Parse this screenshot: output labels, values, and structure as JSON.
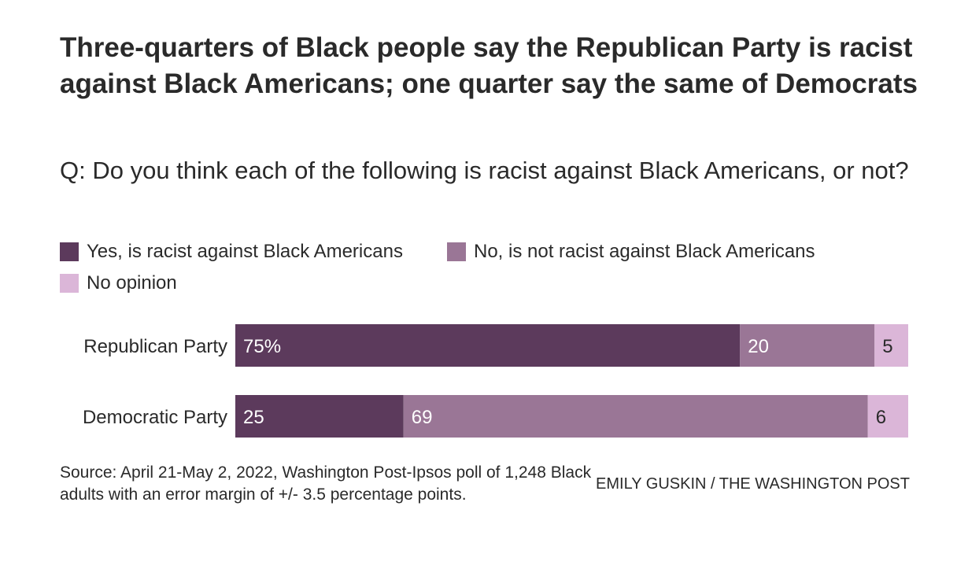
{
  "header": {
    "title": "Three-quarters of Black people say the Republican Party is racist against Black Americans; one quarter say the same of Democrats",
    "subtitle": "Q: Do you think each of the following is racist against Black Americans, or not?"
  },
  "footer": {
    "source": "Source: April 21-May 2, 2022, Washington Post-Ipsos poll of 1,248 Black adults with an error margin of +/- 3.5 percentage points.",
    "credit": "EMILY GUSKIN / THE WASHINGTON POST"
  },
  "chart_data": {
    "type": "bar",
    "orientation": "horizontal",
    "stacked": true,
    "categories": [
      "Republican Party",
      "Democratic Party"
    ],
    "series": [
      {
        "name": "Yes, is racist against Black Americans",
        "values": [
          75,
          25
        ],
        "labels": [
          "75%",
          "25"
        ],
        "color": "#5c3a5c",
        "label_color": "#ffffff"
      },
      {
        "name": "No, is not racist against Black Americans",
        "values": [
          20,
          69
        ],
        "labels": [
          "20",
          "69"
        ],
        "color": "#9a7696",
        "label_color": "#ffffff"
      },
      {
        "name": "No opinion",
        "values": [
          5,
          6
        ],
        "labels": [
          "5",
          "6"
        ],
        "color": "#dbb6d8",
        "label_color": "#2a2a2a"
      }
    ],
    "xlim": [
      0,
      100
    ],
    "grid": false,
    "legend_position": "top-left"
  }
}
